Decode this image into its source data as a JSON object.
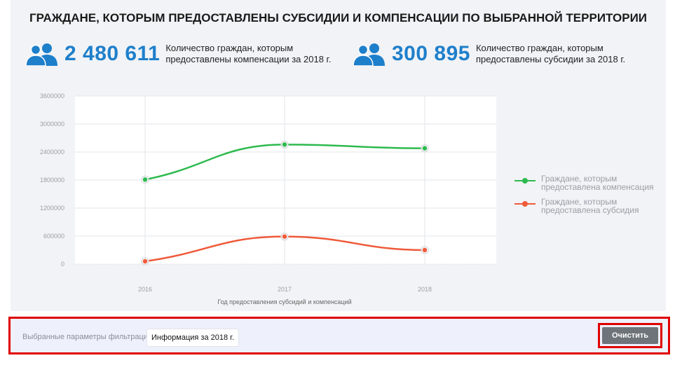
{
  "title": "ГРАЖДАНЕ, КОТОРЫМ ПРЕДОСТАВЛЕНЫ СУБСИДИИ И КОМПЕНСАЦИИ ПО ВЫБРАННОЙ ТЕРРИТОРИИ",
  "stats": [
    {
      "value": "2 480 611",
      "label": "Количество граждан, которым предоставлены компенсации за 2018 г.",
      "icon": "people-icon"
    },
    {
      "value": "300 895",
      "label": "Количество граждан, которым предоставлены субсидии за 2018 г.",
      "icon": "people-icon"
    }
  ],
  "chart_data": {
    "type": "line",
    "x": [
      "2016",
      "2017",
      "2018"
    ],
    "xlabel": "Год предоставления субсидий и компенсаций",
    "ylabel": "",
    "ylim": [
      0,
      3600000
    ],
    "yticks": [
      "0",
      "600000",
      "1200000",
      "1800000",
      "2400000",
      "3000000",
      "3600000"
    ],
    "grid": true,
    "legend_position": "right",
    "series": [
      {
        "name": "Граждане, которым предоставлена компенсация",
        "values": [
          1810000,
          2560000,
          2480611
        ],
        "color": "#2dba4e"
      },
      {
        "name": "Граждане, которым предоставлена субсидия",
        "values": [
          60000,
          590000,
          300895
        ],
        "color": "#ef5a3a"
      }
    ]
  },
  "filters": {
    "label": "Выбранные параметры фильтрации:",
    "chip": "Информация за 2018 г.",
    "clear_label": "Очистить"
  }
}
